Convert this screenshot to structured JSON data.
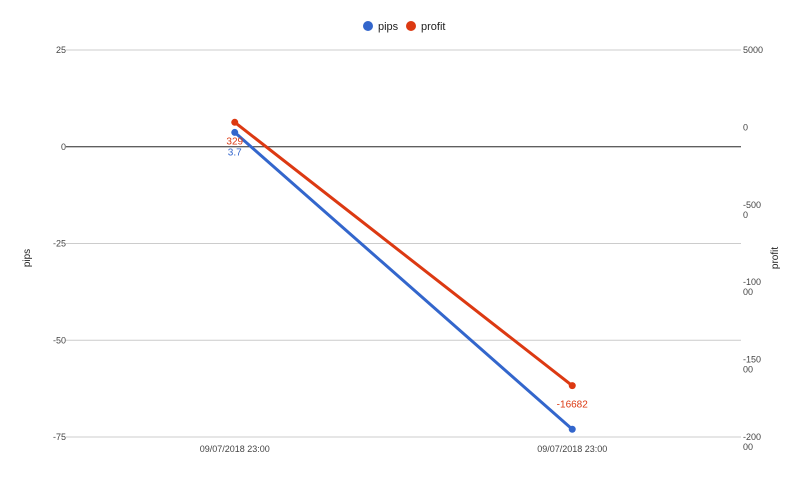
{
  "chart_data": {
    "type": "line",
    "x": [
      "09/07/2018 23:00",
      "09/07/2018 23:00"
    ],
    "series": [
      {
        "name": "pips",
        "axis": "left",
        "color": "#3366cc",
        "values": [
          3.7,
          -73
        ],
        "labels": [
          "3.7",
          ""
        ]
      },
      {
        "name": "profit",
        "axis": "right",
        "color": "#dc3912",
        "values": [
          329,
          -16682
        ],
        "labels": [
          "329",
          "-16682"
        ]
      }
    ],
    "ylabel_left": "pips",
    "ylabel_right": "profit",
    "ylim_left": [
      -75,
      25
    ],
    "ylim_right": [
      -20000,
      5000
    ],
    "left_ticks": [
      "25",
      "0",
      "-25",
      "-50",
      "-75"
    ],
    "right_ticks": [
      [
        "5000"
      ],
      [
        "0"
      ],
      [
        "-500",
        "0"
      ],
      [
        "-100",
        "00"
      ],
      [
        "-150",
        "00"
      ],
      [
        "-200",
        "00"
      ]
    ],
    "legend_position": "top",
    "grid": true
  }
}
